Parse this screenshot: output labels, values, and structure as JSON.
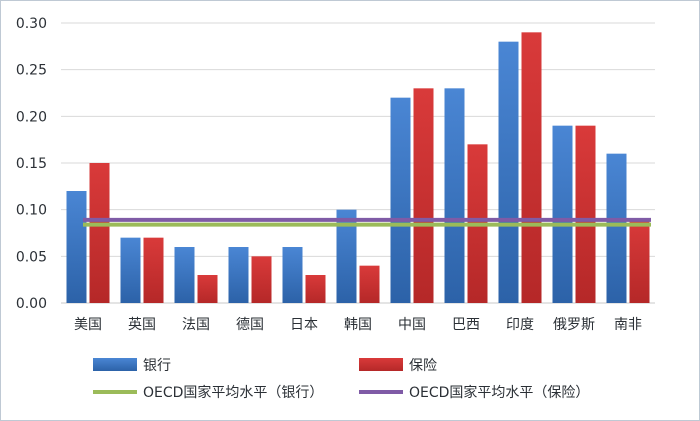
{
  "chart_data": {
    "type": "bar",
    "categories": [
      "美国",
      "英国",
      "法国",
      "德国",
      "日本",
      "韩国",
      "中国",
      "巴西",
      "印度",
      "俄罗斯",
      "南非"
    ],
    "series": [
      {
        "name": "银行",
        "values": [
          0.12,
          0.07,
          0.06,
          0.06,
          0.06,
          0.1,
          0.22,
          0.23,
          0.28,
          0.19,
          0.16
        ],
        "color": "#3a76c4"
      },
      {
        "name": "保险",
        "values": [
          0.15,
          0.07,
          0.03,
          0.05,
          0.03,
          0.04,
          0.23,
          0.17,
          0.29,
          0.19,
          0.09
        ],
        "color": "#cf3333"
      }
    ],
    "reference_lines": [
      {
        "name": "OECD国家平均水平（银行）",
        "value": 0.084,
        "color": "#9bbb59"
      },
      {
        "name": "OECD国家平均水平（保险）",
        "value": 0.089,
        "color": "#7f5ba6"
      }
    ],
    "yticks": [
      "0.00",
      "0.05",
      "0.10",
      "0.15",
      "0.20",
      "0.25",
      "0.30"
    ],
    "ylim": [
      0,
      0.3
    ],
    "grid": true,
    "legend_position": "bottom"
  }
}
